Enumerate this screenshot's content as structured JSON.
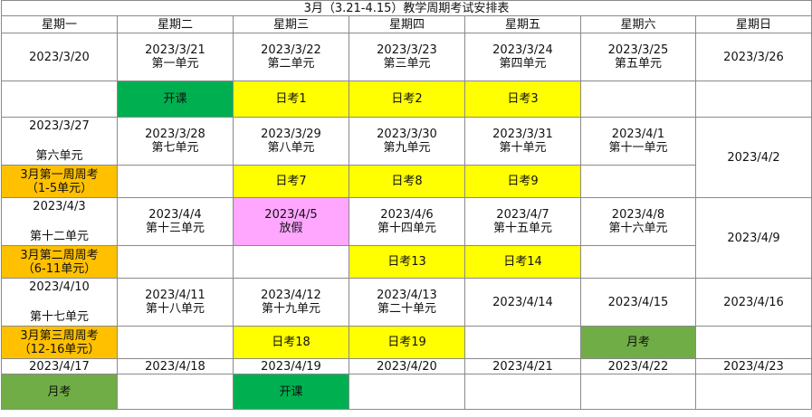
{
  "title": "3月（3.21-4.15）教学周期考试安排表",
  "weekdays": [
    "星期一",
    "星期二",
    "星期三",
    "星期四",
    "星期五",
    "星期六",
    "星期日"
  ],
  "week1": {
    "dates": [
      "2023/3/20",
      "2023/3/21",
      "2023/3/22",
      "2023/3/23",
      "2023/3/24",
      "2023/3/25",
      "2023/3/26"
    ],
    "units": [
      "",
      "第一单元",
      "第二单元",
      "第三单元",
      "第四单元",
      "第五单元",
      ""
    ],
    "events": [
      "",
      "开课",
      "日考1",
      "日考2",
      "日考3",
      "",
      ""
    ]
  },
  "week2": {
    "dates": [
      "2023/3/27",
      "2023/3/28",
      "2023/3/29",
      "2023/3/30",
      "2023/3/31",
      "2023/4/1",
      "2023/4/2"
    ],
    "units": [
      "第六单元",
      "第七单元",
      "第八单元",
      "第九单元",
      "第十单元",
      "第十一单元",
      ""
    ],
    "events": [
      "3月第一周周考",
      "",
      "日考7",
      "日考8",
      "日考9",
      "",
      ""
    ],
    "event_mon_line2": "（1-5单元）"
  },
  "week3": {
    "dates": [
      "2023/4/3",
      "2023/4/4",
      "2023/4/5",
      "2023/4/6",
      "2023/4/7",
      "2023/4/8",
      "2023/4/9"
    ],
    "units": [
      "第十二单元",
      "第十三单元",
      "放假",
      "第十四单元",
      "第十五单元",
      "第十六单元",
      ""
    ],
    "events": [
      "3月第二周周考",
      "",
      "",
      "日考13",
      "日考14",
      "",
      ""
    ],
    "event_mon_line2": "（6-11单元）"
  },
  "week4": {
    "dates": [
      "2023/4/10",
      "2023/4/11",
      "2023/4/12",
      "2023/4/13",
      "2023/4/14",
      "2023/4/15",
      "2023/4/16"
    ],
    "units": [
      "第十七单元",
      "第十八单元",
      "第十九单元",
      "第二十单元",
      "",
      "",
      ""
    ],
    "events": [
      "3月第三周周考",
      "",
      "日考18",
      "日考19",
      "",
      "月考",
      ""
    ],
    "event_mon_line2": "（12-16单元）"
  },
  "week5": {
    "dates": [
      "2023/4/17",
      "2023/4/18",
      "2023/4/19",
      "2023/4/20",
      "2023/4/21",
      "2023/4/22",
      "2023/4/23"
    ],
    "events": [
      "月考",
      "",
      "开课",
      "",
      "",
      "",
      ""
    ]
  },
  "colors": {
    "yellow": "#ffff00",
    "green": "#00b050",
    "orange": "#ffc000",
    "pink": "#ffa6ff",
    "olive": "#70ad47"
  }
}
